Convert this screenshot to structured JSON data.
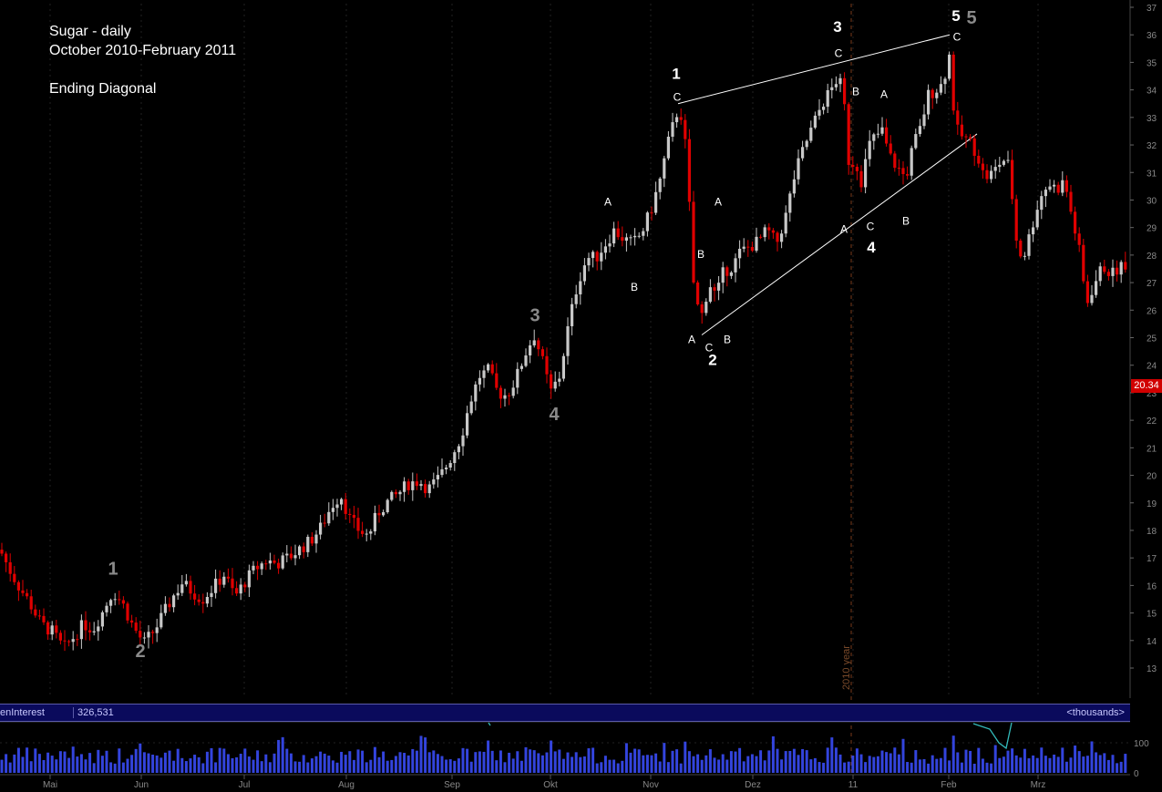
{
  "title_block": {
    "line1": "Sugar - daily",
    "line2": "October 2010-February 2011",
    "line3": "Ending Diagonal"
  },
  "last_price": "20.34",
  "open_interest": {
    "label": "enInterest",
    "value": "326,531",
    "units": "<thousands>"
  },
  "colors": {
    "up_candle": "#c8c8c8",
    "down_candle": "#e00000",
    "volume": "#3344dd",
    "open_interest_line": "#33bbbb",
    "axis_text": "#888888",
    "year_divider": "#7a3a1a"
  },
  "chart_data": {
    "type": "candlestick",
    "y_axis": {
      "ticks": [
        13,
        14,
        15,
        16,
        17,
        18,
        19,
        20,
        21,
        22,
        23,
        24,
        25,
        26,
        27,
        28,
        29,
        30,
        31,
        32,
        33,
        34,
        35,
        36,
        37
      ],
      "ylim": [
        12.5,
        37.2
      ]
    },
    "volume_axis": {
      "ticks": [
        "100",
        "0"
      ]
    },
    "x_months": [
      "Mai",
      "Jun",
      "Jul",
      "Aug",
      "Sep",
      "Okt",
      "Nov",
      "Dez",
      "11",
      "Feb",
      "Mrz"
    ],
    "year_divider_label": "2010 year",
    "price_path": [
      [
        0,
        17.3
      ],
      [
        10,
        16.6
      ],
      [
        20,
        16.0
      ],
      [
        32,
        15.4
      ],
      [
        45,
        14.6
      ],
      [
        58,
        14.3
      ],
      [
        70,
        13.7
      ],
      [
        80,
        14.1
      ],
      [
        92,
        14.6
      ],
      [
        102,
        14.4
      ],
      [
        112,
        15.0
      ],
      [
        124,
        15.8
      ],
      [
        135,
        15.3
      ],
      [
        146,
        14.5
      ],
      [
        158,
        13.9
      ],
      [
        170,
        14.4
      ],
      [
        180,
        15.0
      ],
      [
        190,
        15.6
      ],
      [
        200,
        16.1
      ],
      [
        210,
        15.8
      ],
      [
        222,
        15.5
      ],
      [
        236,
        16.0
      ],
      [
        246,
        16.4
      ],
      [
        258,
        15.6
      ],
      [
        270,
        16.2
      ],
      [
        280,
        16.6
      ],
      [
        292,
        16.9
      ],
      [
        304,
        16.8
      ],
      [
        316,
        17.0
      ],
      [
        328,
        17.3
      ],
      [
        340,
        17.6
      ],
      [
        352,
        18.1
      ],
      [
        364,
        18.9
      ],
      [
        374,
        19.3
      ],
      [
        384,
        18.4
      ],
      [
        394,
        18.0
      ],
      [
        404,
        17.8
      ],
      [
        414,
        18.6
      ],
      [
        424,
        19.0
      ],
      [
        436,
        19.3
      ],
      [
        448,
        19.7
      ],
      [
        460,
        19.8
      ],
      [
        470,
        19.5
      ],
      [
        482,
        19.9
      ],
      [
        494,
        20.6
      ],
      [
        506,
        21.4
      ],
      [
        516,
        22.7
      ],
      [
        526,
        23.6
      ],
      [
        536,
        23.8
      ],
      [
        546,
        23.0
      ],
      [
        556,
        22.9
      ],
      [
        566,
        23.5
      ],
      [
        576,
        24.4
      ],
      [
        586,
        25.1
      ],
      [
        594,
        24.3
      ],
      [
        604,
        23.0
      ],
      [
        614,
        23.6
      ],
      [
        624,
        25.5
      ],
      [
        634,
        27.0
      ],
      [
        644,
        27.9
      ],
      [
        654,
        27.9
      ],
      [
        664,
        28.4
      ],
      [
        674,
        28.9
      ],
      [
        684,
        28.6
      ],
      [
        694,
        28.4
      ],
      [
        704,
        28.8
      ],
      [
        714,
        29.6
      ],
      [
        724,
        30.7
      ],
      [
        734,
        32.2
      ],
      [
        744,
        33.3
      ],
      [
        750,
        32.9
      ],
      [
        756,
        30.0
      ],
      [
        762,
        26.4
      ],
      [
        770,
        25.8
      ],
      [
        778,
        27.0
      ],
      [
        786,
        26.5
      ],
      [
        794,
        27.4
      ],
      [
        804,
        27.6
      ],
      [
        812,
        28.1
      ],
      [
        822,
        28.3
      ],
      [
        832,
        28.5
      ],
      [
        842,
        28.9
      ],
      [
        852,
        28.4
      ],
      [
        862,
        29.4
      ],
      [
        872,
        30.9
      ],
      [
        882,
        31.9
      ],
      [
        892,
        32.7
      ],
      [
        902,
        33.5
      ],
      [
        912,
        34.0
      ],
      [
        920,
        34.5
      ],
      [
        926,
        33.6
      ],
      [
        932,
        31.1
      ],
      [
        938,
        31.5
      ],
      [
        946,
        30.6
      ],
      [
        952,
        31.9
      ],
      [
        960,
        32.3
      ],
      [
        968,
        32.5
      ],
      [
        976,
        31.6
      ],
      [
        984,
        31.2
      ],
      [
        994,
        30.8
      ],
      [
        1002,
        32.0
      ],
      [
        1010,
        32.6
      ],
      [
        1018,
        33.8
      ],
      [
        1026,
        34.0
      ],
      [
        1034,
        34.2
      ],
      [
        1042,
        35.3
      ],
      [
        1048,
        32.6
      ],
      [
        1056,
        32.3
      ],
      [
        1064,
        32.1
      ],
      [
        1072,
        31.7
      ],
      [
        1080,
        30.8
      ],
      [
        1090,
        31.0
      ],
      [
        1100,
        31.5
      ],
      [
        1108,
        31.2
      ],
      [
        1114,
        28.7
      ],
      [
        1122,
        27.8
      ],
      [
        1132,
        29.0
      ],
      [
        1140,
        30.0
      ],
      [
        1150,
        30.6
      ],
      [
        1160,
        30.4
      ],
      [
        1168,
        30.7
      ],
      [
        1176,
        29.4
      ],
      [
        1184,
        28.2
      ],
      [
        1192,
        26.2
      ],
      [
        1200,
        26.9
      ],
      [
        1210,
        27.6
      ],
      [
        1220,
        27.3
      ],
      [
        1230,
        27.6
      ],
      [
        1238,
        27.3
      ]
    ],
    "trendlines": [
      {
        "from": {
          "x": 744,
          "y": 33.5
        },
        "to": {
          "x": 1042,
          "y": 36.0
        }
      },
      {
        "from": {
          "x": 770,
          "y": 25.1
        },
        "to": {
          "x": 1072,
          "y": 32.4
        }
      }
    ],
    "annotations": [
      {
        "text": "1",
        "x": 124,
        "price": 16.4,
        "color": "gray",
        "weight": "bold",
        "size": 20
      },
      {
        "text": "2",
        "x": 154,
        "price": 13.4,
        "color": "gray",
        "weight": "bold",
        "size": 20
      },
      {
        "text": "3",
        "x": 587,
        "price": 25.6,
        "color": "gray",
        "weight": "bold",
        "size": 20
      },
      {
        "text": "4",
        "x": 608,
        "price": 22.0,
        "color": "gray",
        "weight": "bold",
        "size": 20
      },
      {
        "text": "5",
        "x": 1066,
        "price": 36.4,
        "color": "gray",
        "weight": "bold",
        "size": 20
      },
      {
        "text": "1",
        "x": 742,
        "price": 34.4,
        "color": "white",
        "weight": "bold",
        "size": 17
      },
      {
        "text": "2",
        "x": 782,
        "price": 24.0,
        "color": "white",
        "weight": "bold",
        "size": 17
      },
      {
        "text": "3",
        "x": 919,
        "price": 36.1,
        "color": "white",
        "weight": "bold",
        "size": 17
      },
      {
        "text": "4",
        "x": 956,
        "price": 28.1,
        "color": "white",
        "weight": "bold",
        "size": 17
      },
      {
        "text": "5",
        "x": 1049,
        "price": 36.5,
        "color": "white",
        "weight": "bold",
        "size": 17
      },
      {
        "text": "A",
        "x": 667,
        "price": 29.8,
        "color": "white",
        "weight": "normal",
        "size": 12
      },
      {
        "text": "B",
        "x": 696,
        "price": 26.7,
        "color": "white",
        "weight": "normal",
        "size": 12
      },
      {
        "text": "C",
        "x": 743,
        "price": 33.6,
        "color": "white",
        "weight": "normal",
        "size": 12
      },
      {
        "text": "A",
        "x": 759,
        "price": 24.8,
        "color": "white",
        "weight": "normal",
        "size": 12
      },
      {
        "text": "B",
        "x": 769,
        "price": 27.9,
        "color": "white",
        "weight": "normal",
        "size": 12
      },
      {
        "text": "A",
        "x": 788,
        "price": 29.8,
        "color": "white",
        "weight": "normal",
        "size": 12
      },
      {
        "text": "C",
        "x": 778,
        "price": 24.5,
        "color": "white",
        "weight": "normal",
        "size": 12
      },
      {
        "text": "B",
        "x": 798,
        "price": 24.8,
        "color": "white",
        "weight": "normal",
        "size": 12
      },
      {
        "text": "C",
        "x": 920,
        "price": 35.2,
        "color": "white",
        "weight": "normal",
        "size": 12
      },
      {
        "text": "B",
        "x": 939,
        "price": 33.8,
        "color": "white",
        "weight": "normal",
        "size": 12
      },
      {
        "text": "A",
        "x": 970,
        "price": 33.7,
        "color": "white",
        "weight": "normal",
        "size": 12
      },
      {
        "text": "A",
        "x": 926,
        "price": 28.8,
        "color": "white",
        "weight": "normal",
        "size": 12
      },
      {
        "text": "C",
        "x": 955,
        "price": 28.9,
        "color": "white",
        "weight": "normal",
        "size": 12
      },
      {
        "text": "B",
        "x": 994,
        "price": 29.1,
        "color": "white",
        "weight": "normal",
        "size": 12
      },
      {
        "text": "C",
        "x": 1050,
        "price": 35.8,
        "color": "white",
        "weight": "normal",
        "size": 12
      }
    ]
  }
}
